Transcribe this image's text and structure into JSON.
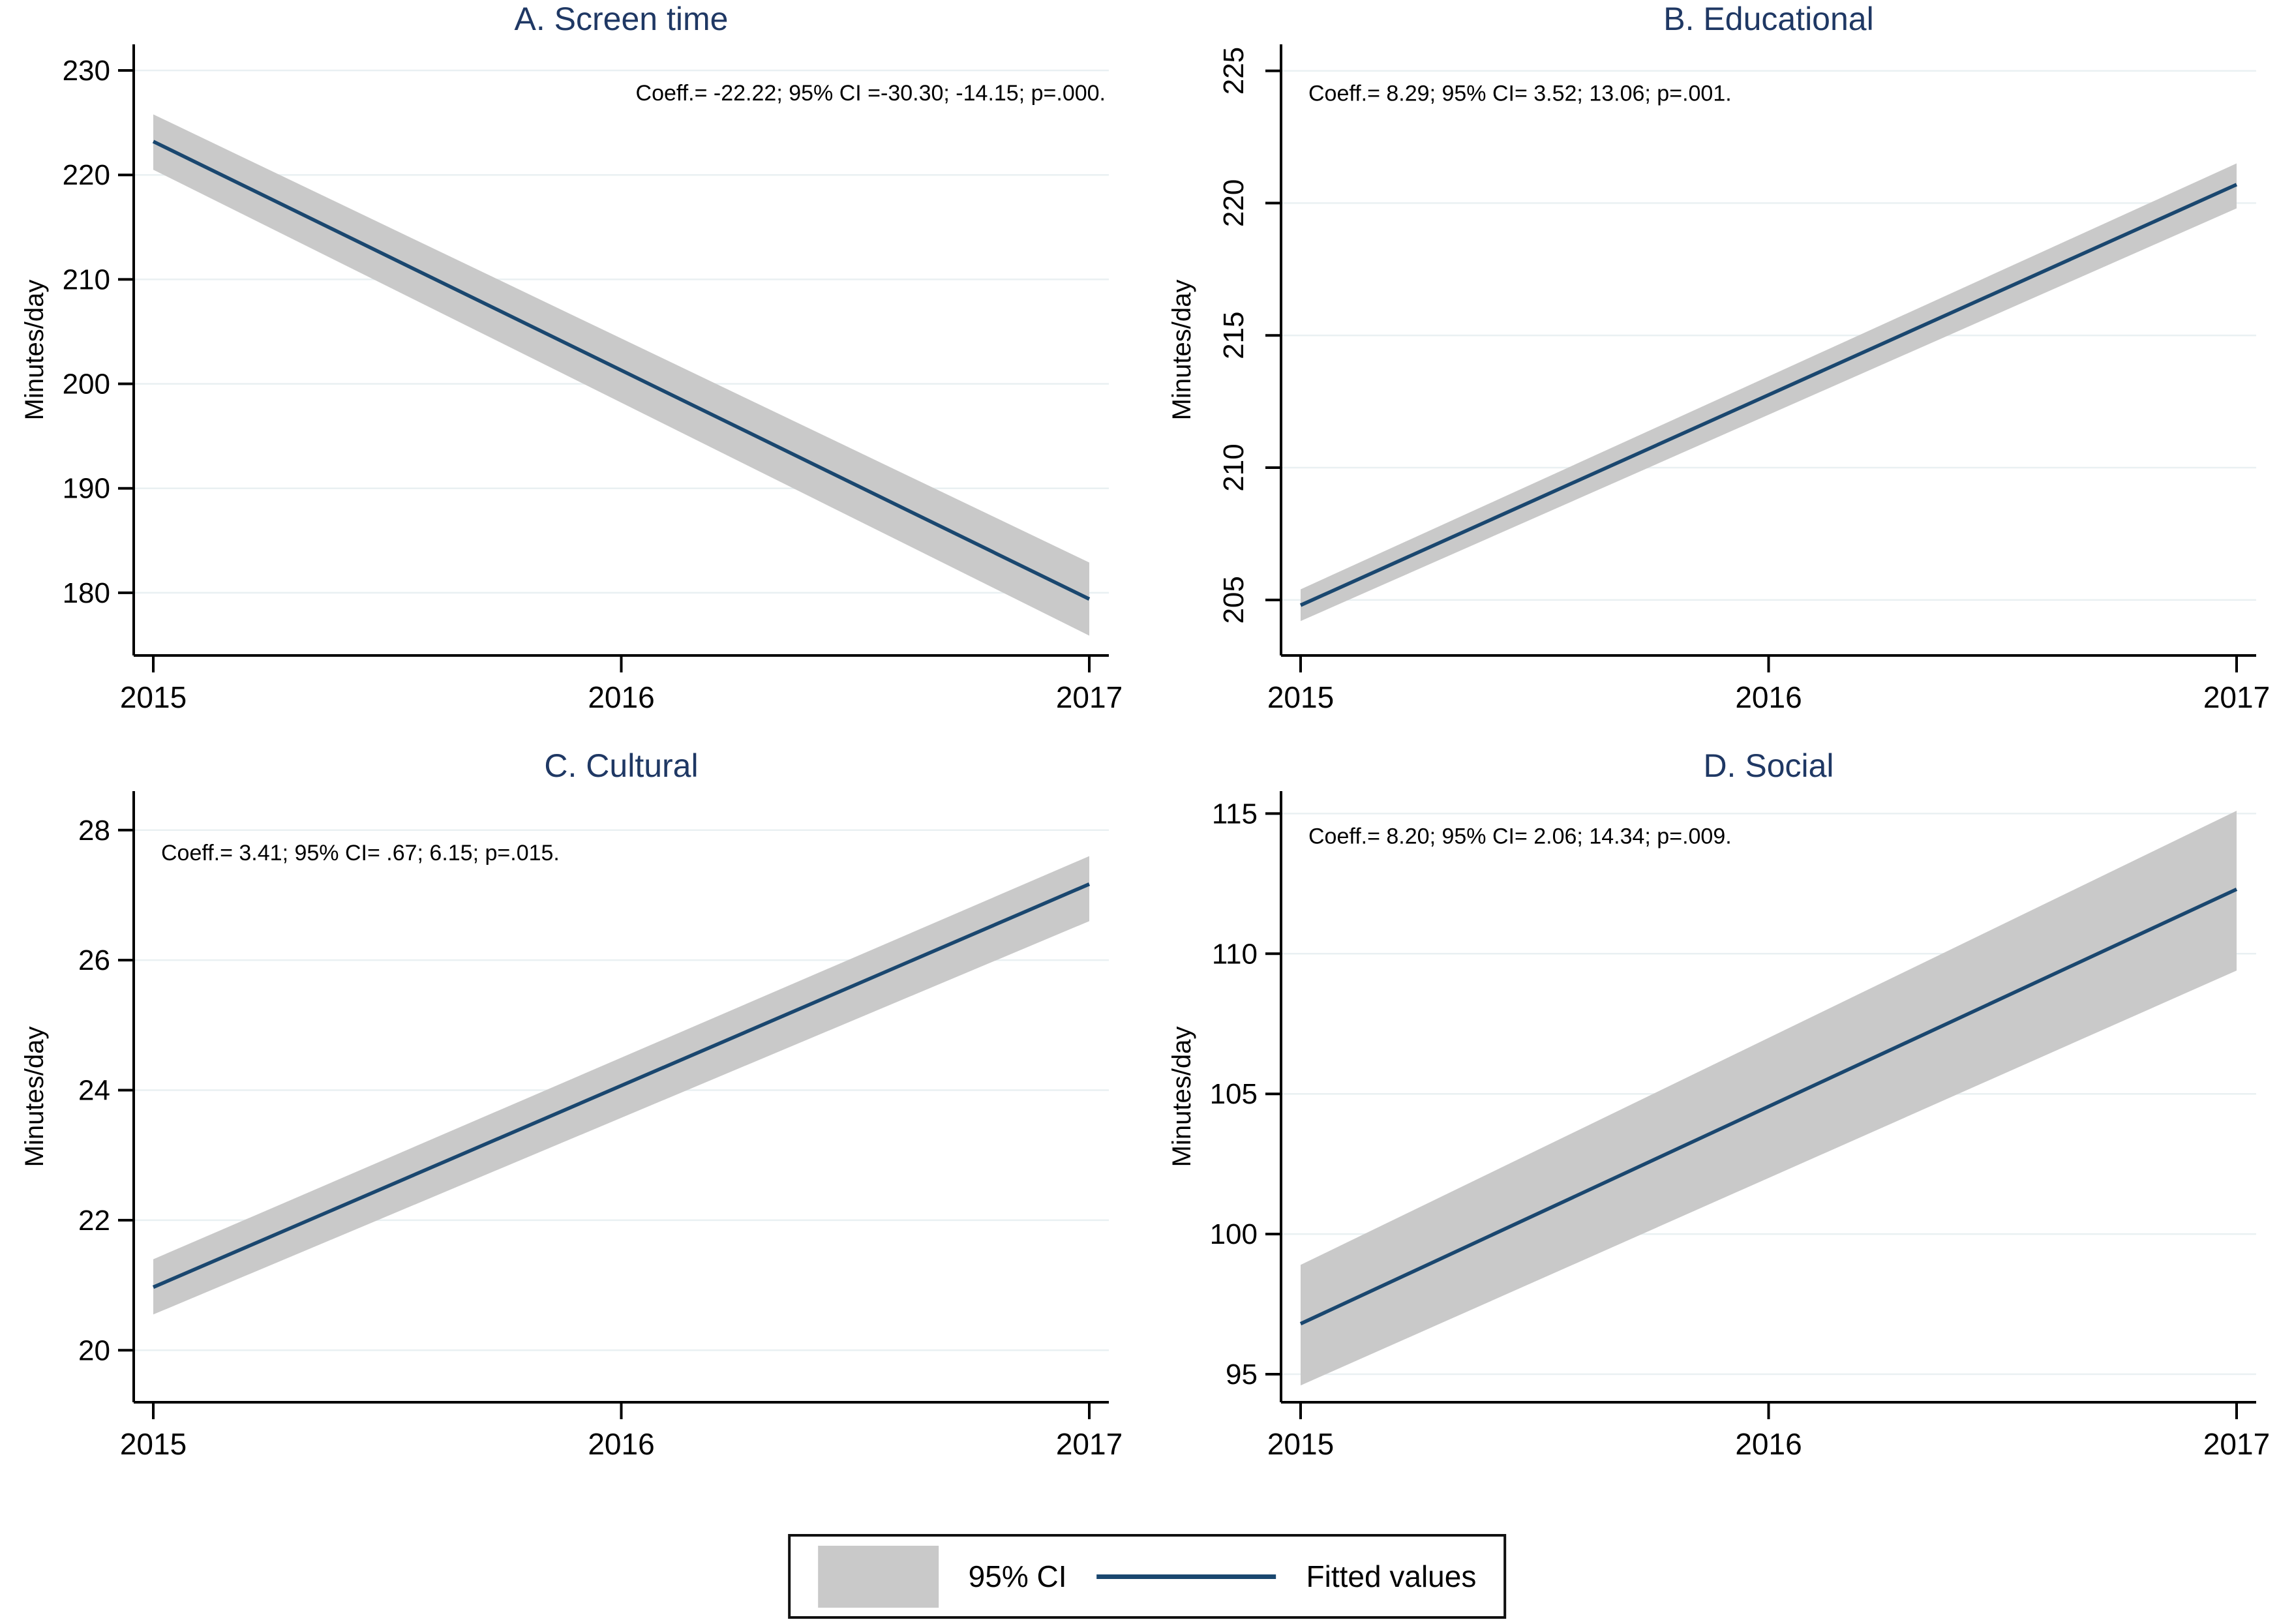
{
  "page": {
    "background": "#ffffff"
  },
  "colors": {
    "fitted_line": "#1a476f",
    "ci_band": "#c9c9c9",
    "title": "#1f3864",
    "gridline": "#e9f0f2",
    "axis": "#000000",
    "tick_text": "#000000"
  },
  "legend": {
    "ci_label": "95% CI",
    "fitted_label": "Fitted values"
  },
  "chart_data": [
    {
      "type": "line",
      "title": "A. Screen time",
      "annotation": "Coeff.= -22.22; 95% CI =-30.30; -14.15; p=.000.",
      "annotation_align": "right",
      "ylabel": "Minutes/day",
      "x": [
        2015,
        2017
      ],
      "xticks": [
        2015,
        2016,
        2017
      ],
      "yticks": [
        230,
        220,
        210,
        200,
        190,
        180
      ],
      "ylim": [
        174.0,
        232.5
      ],
      "ytick_rotated": false,
      "grid": true,
      "legend_position": "bottom-shared",
      "series": [
        {
          "name": "Fitted values",
          "values": [
            223.2,
            179.4
          ]
        },
        {
          "name": "95% CI lower",
          "values": [
            220.5,
            175.9
          ]
        },
        {
          "name": "95% CI upper",
          "values": [
            225.8,
            182.9
          ]
        }
      ]
    },
    {
      "type": "line",
      "title": "B. Educational",
      "annotation": "Coeff.= 8.29; 95% CI= 3.52; 13.06; p=.001.",
      "annotation_align": "left",
      "ylabel": "Minutes/day",
      "x": [
        2015,
        2017
      ],
      "xticks": [
        2015,
        2016,
        2017
      ],
      "yticks": [
        225,
        220,
        215,
        210,
        205
      ],
      "ylim": [
        202.9,
        226.0
      ],
      "ytick_rotated": true,
      "grid": true,
      "legend_position": "bottom-shared",
      "series": [
        {
          "name": "Fitted values",
          "values": [
            204.8,
            220.7
          ]
        },
        {
          "name": "95% CI lower",
          "values": [
            204.2,
            219.8
          ]
        },
        {
          "name": "95% CI upper",
          "values": [
            205.4,
            221.5
          ]
        }
      ]
    },
    {
      "type": "line",
      "title": "C. Cultural",
      "annotation": "Coeff.= 3.41; 95% CI= .67; 6.15; p=.015.",
      "annotation_align": "left",
      "ylabel": "Minutes/day",
      "x": [
        2015,
        2017
      ],
      "xticks": [
        2015,
        2016,
        2017
      ],
      "yticks": [
        28,
        26,
        24,
        22,
        20
      ],
      "ylim": [
        19.2,
        28.6
      ],
      "ytick_rotated": false,
      "grid": true,
      "legend_position": "bottom-shared",
      "series": [
        {
          "name": "Fitted values",
          "values": [
            20.97,
            27.17
          ]
        },
        {
          "name": "95% CI lower",
          "values": [
            20.55,
            26.6
          ]
        },
        {
          "name": "95% CI upper",
          "values": [
            21.4,
            27.6
          ]
        }
      ]
    },
    {
      "type": "line",
      "title": "D. Social",
      "annotation": "Coeff.= 8.20; 95% CI= 2.06; 14.34; p=.009.",
      "annotation_align": "left",
      "ylabel": "Minutes/day",
      "x": [
        2015,
        2017
      ],
      "xticks": [
        2015,
        2016,
        2017
      ],
      "yticks": [
        115,
        110,
        105,
        100,
        95
      ],
      "ylim": [
        94.0,
        115.8
      ],
      "ytick_rotated": false,
      "grid": true,
      "legend_position": "bottom-shared",
      "series": [
        {
          "name": "Fitted values",
          "values": [
            96.8,
            112.3
          ]
        },
        {
          "name": "95% CI lower",
          "values": [
            94.6,
            109.4
          ]
        },
        {
          "name": "95% CI upper",
          "values": [
            98.9,
            115.1
          ]
        }
      ]
    }
  ]
}
